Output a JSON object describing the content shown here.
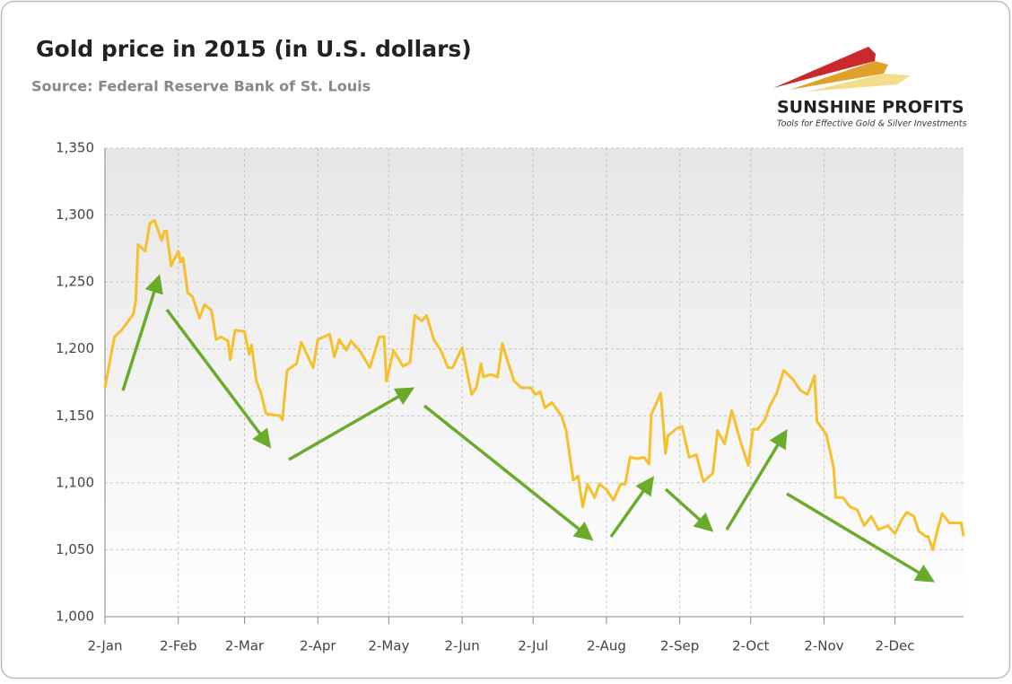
{
  "chart_data": {
    "type": "line",
    "title": "Gold price in 2015 (in U.S. dollars)",
    "subtitle": "Source: Federal Reserve Bank of St. Louis",
    "logo": {
      "name": "SUNSHINE PROFITS",
      "tagline": "Tools for Effective Gold & Silver Investments"
    },
    "x": [
      0,
      4,
      7,
      12,
      13,
      14,
      17,
      19,
      21,
      24,
      25,
      26,
      28,
      29,
      31,
      32,
      33,
      35,
      37,
      40,
      42,
      45,
      47,
      49,
      52,
      53,
      55,
      59,
      61,
      62,
      64,
      66,
      68,
      70,
      74,
      75,
      77,
      81,
      83,
      88,
      90,
      95,
      97,
      99,
      102,
      104,
      108,
      112,
      116,
      118,
      119,
      122,
      126,
      129,
      131,
      134,
      136,
      139,
      142,
      145,
      147,
      151,
      155,
      157,
      159,
      160,
      163,
      166,
      168,
      170,
      173,
      176,
      180,
      182,
      184,
      186,
      189,
      193,
      195,
      198,
      200,
      202,
      204,
      207,
      209,
      212,
      215,
      218,
      220,
      222,
      225,
      228,
      230,
      231,
      233,
      235,
      237,
      238,
      242,
      244,
      247,
      250,
      253,
      257,
      259,
      262,
      265,
      269,
      272,
      274,
      276,
      279,
      281,
      284,
      287,
      291,
      294,
      297,
      300,
      301,
      305,
      308,
      309,
      312,
      315,
      318,
      321,
      324,
      327,
      331,
      334,
      337,
      339,
      342,
      344,
      347,
      348,
      350,
      352,
      354,
      357,
      362,
      363
    ],
    "series": [
      {
        "name": "Gold price",
        "color": "#f5c02c",
        "values": [
          1171,
          1209,
          1214,
          1226,
          1236,
          1278,
          1273,
          1294,
          1296,
          1281,
          1288,
          1288,
          1262,
          1266,
          1273,
          1265,
          1268,
          1242,
          1239,
          1223,
          1233,
          1229,
          1207,
          1209,
          1206,
          1192,
          1214,
          1213,
          1196,
          1203,
          1176,
          1167,
          1152,
          1151,
          1150,
          1147,
          1184,
          1189,
          1205,
          1186,
          1207,
          1211,
          1194,
          1207,
          1199,
          1206,
          1198,
          1186,
          1209,
          1209,
          1176,
          1199,
          1187,
          1190,
          1225,
          1221,
          1225,
          1207,
          1199,
          1186,
          1186,
          1201,
          1166,
          1171,
          1189,
          1179,
          1181,
          1179,
          1204,
          1192,
          1176,
          1171,
          1171,
          1166,
          1168,
          1156,
          1160,
          1150,
          1139,
          1102,
          1105,
          1082,
          1099,
          1089,
          1099,
          1095,
          1087,
          1099,
          1099,
          1119,
          1118,
          1119,
          1114,
          1151,
          1159,
          1167,
          1122,
          1135,
          1141,
          1142,
          1119,
          1121,
          1101,
          1107,
          1139,
          1129,
          1154,
          1129,
          1113,
          1140,
          1140,
          1147,
          1157,
          1167,
          1184,
          1177,
          1169,
          1166,
          1180,
          1146,
          1136,
          1112,
          1089,
          1089,
          1082,
          1080,
          1068,
          1075,
          1065,
          1068,
          1062,
          1073,
          1078,
          1075,
          1064,
          1060,
          1060,
          1050,
          1065,
          1077,
          1070,
          1070,
          1060
        ]
      }
    ],
    "xlim": [
      0,
      363
    ],
    "xticks": [
      {
        "value": 0,
        "label": "2-Jan"
      },
      {
        "value": 31,
        "label": "2-Feb"
      },
      {
        "value": 59,
        "label": "2-Mar"
      },
      {
        "value": 90,
        "label": "2-Apr"
      },
      {
        "value": 120,
        "label": "2-May"
      },
      {
        "value": 151,
        "label": "2-Jun"
      },
      {
        "value": 181,
        "label": "2-Jul"
      },
      {
        "value": 212,
        "label": "2-Aug"
      },
      {
        "value": 243,
        "label": "2-Sep"
      },
      {
        "value": 273,
        "label": "2-Oct"
      },
      {
        "value": 304,
        "label": "2-Nov"
      },
      {
        "value": 334,
        "label": "2-Dec"
      }
    ],
    "ylim": [
      1000,
      1350
    ],
    "yticks": [
      {
        "value": 1000,
        "label": "1,000"
      },
      {
        "value": 1050,
        "label": "1,050"
      },
      {
        "value": 1100,
        "label": "1,100"
      },
      {
        "value": 1150,
        "label": "1,150"
      },
      {
        "value": 1200,
        "label": "1,200"
      },
      {
        "value": 1250,
        "label": "1,250"
      },
      {
        "value": 1300,
        "label": "1,300"
      },
      {
        "value": 1350,
        "label": "1,350"
      }
    ],
    "grid": true
  }
}
